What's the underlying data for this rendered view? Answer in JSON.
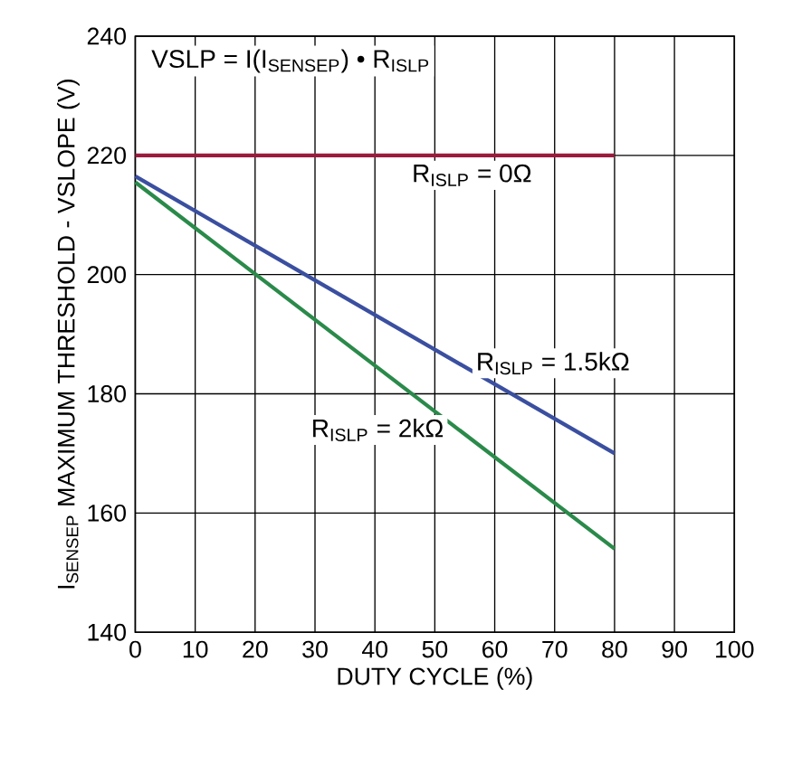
{
  "chart_data": {
    "type": "line",
    "xlabel": "DUTY CYCLE (%)",
    "ylabel": "I$_{SENSEP}$ MAXIMUM THRESHOLD - VSLOPE (V)",
    "annotations": [
      "VSLP = I(I$_{SENSEP}$) • R$_{ISLP}$"
    ],
    "x": [
      0,
      80
    ],
    "series": [
      {
        "name": "R$_{ISLP}$ = 0Ω",
        "color": "#9b1b3c",
        "values": [
          220,
          220
        ]
      },
      {
        "name": "R$_{ISLP}$ = 1.5kΩ",
        "color": "#3a4fa0",
        "values": [
          216.5,
          170
        ]
      },
      {
        "name": "R$_{ISLP}$ = 2kΩ",
        "color": "#2a8a4a",
        "values": [
          215.5,
          154
        ]
      }
    ],
    "xlim": [
      0,
      100
    ],
    "ylim": [
      140,
      240
    ],
    "xticks": [
      0,
      10,
      20,
      30,
      40,
      50,
      60,
      70,
      80,
      90,
      100
    ],
    "yticks": [
      140,
      160,
      180,
      200,
      220,
      240
    ],
    "grid": true,
    "legend": false,
    "marker": "none",
    "line_style": "solid"
  }
}
